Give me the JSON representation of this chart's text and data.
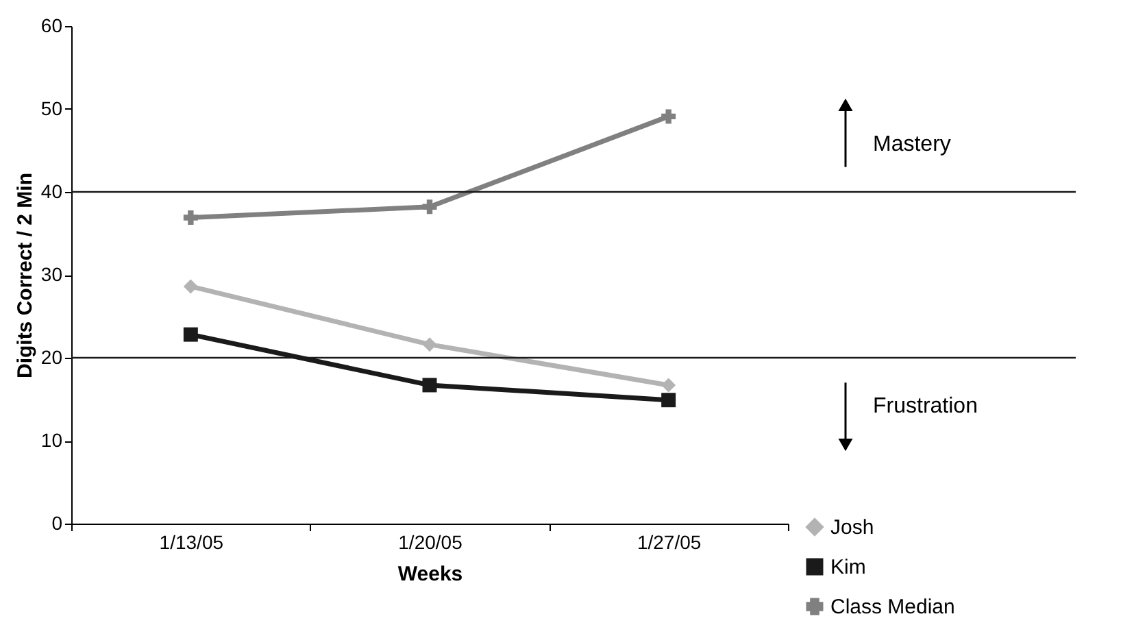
{
  "chart_data": {
    "type": "line",
    "xlabel": "Weeks",
    "ylabel": "Digits Correct / 2 Min",
    "categories": [
      "1/13/05",
      "1/20/05",
      "1/27/05"
    ],
    "series": [
      {
        "name": "Josh",
        "color": "#b3b3b3",
        "marker": "diamond",
        "values": [
          28.6,
          21.6,
          16.7
        ]
      },
      {
        "name": "Kim",
        "color": "#1a1a1a",
        "marker": "square",
        "values": [
          22.8,
          16.7,
          14.9
        ]
      },
      {
        "name": "Class Median",
        "color": "#808080",
        "marker": "cross",
        "values": [
          36.9,
          38.2,
          49.1
        ]
      }
    ],
    "ylim": [
      0,
      60
    ],
    "yticks": [
      0,
      10,
      20,
      30,
      40,
      50,
      60
    ],
    "grid": false,
    "legend": "bottom right",
    "ref_lines": [
      {
        "axis": "y",
        "value": 40,
        "color": "#1a1a1a"
      },
      {
        "axis": "y",
        "value": 20,
        "color": "#1a1a1a"
      }
    ],
    "annotations": [
      "Mastery",
      "Frustration"
    ]
  }
}
